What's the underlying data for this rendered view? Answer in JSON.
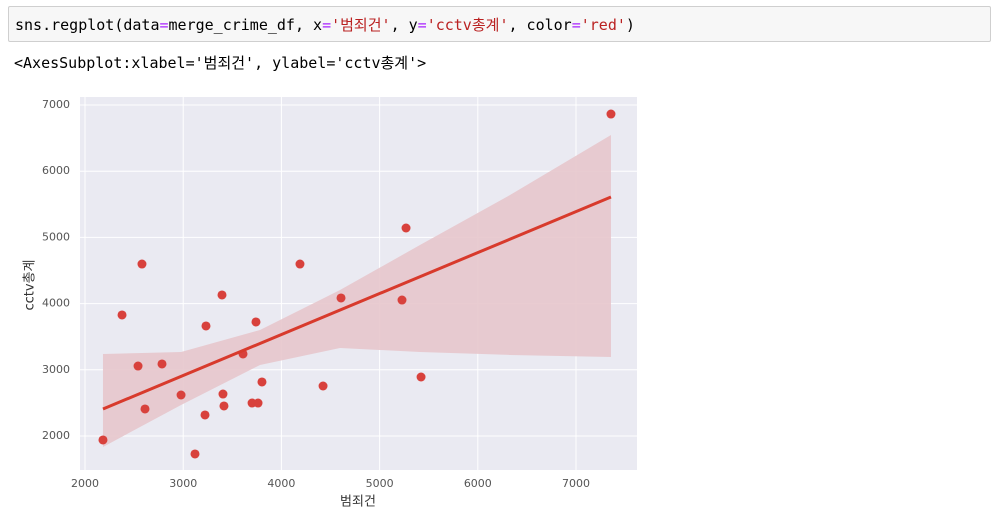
{
  "code_cell": {
    "tokens": [
      "sns.regplot(data",
      "=",
      "merge_crime_df, x",
      "=",
      "'범죄건'",
      ", y",
      "=",
      "'cctv총계'",
      ", color",
      "=",
      "'red'",
      ")"
    ]
  },
  "output_text": "<AxesSubplot:xlabel='범죄건', ylabel='cctv총계'>",
  "chart_data": {
    "type": "scatter",
    "xlabel": "범죄건",
    "ylabel": "cctv총계",
    "x": [
      2183,
      2377,
      2540,
      2580,
      2611,
      2784,
      2978,
      3120,
      3222,
      3232,
      3395,
      3405,
      3415,
      3609,
      3701,
      3741,
      3762,
      3802,
      4189,
      4424,
      4607,
      5228,
      5269,
      5422,
      7356
    ],
    "values": [
      1940,
      3828,
      3057,
      4598,
      2408,
      3088,
      2619,
      1728,
      2317,
      3662,
      4130,
      2634,
      2453,
      3239,
      2498,
      3722,
      2498,
      2816,
      4598,
      2755,
      4085,
      4054,
      5142,
      2891,
      6864
    ],
    "color": "#d8413c",
    "regression": {
      "x": [
        2183,
        7356
      ],
      "y": [
        2408,
        5610
      ],
      "color": "#d83a2c"
    },
    "ci": {
      "x": [
        2183,
        2978,
        3782,
        4597,
        5411,
        6328,
        7356
      ],
      "upper": [
        3239,
        3269,
        3601,
        4205,
        4885,
        5640,
        6547
      ],
      "lower": [
        1834,
        2468,
        3073,
        3329,
        3269,
        3224,
        3193
      ],
      "color": "#e7c6cc"
    },
    "xlim": [
      1949,
      7621
    ],
    "ylim": [
      1486,
      7121
    ],
    "xticks": [
      2000,
      3000,
      4000,
      5000,
      6000,
      7000
    ],
    "yticks": [
      2000,
      3000,
      4000,
      5000,
      6000,
      7000
    ],
    "grid": true
  }
}
